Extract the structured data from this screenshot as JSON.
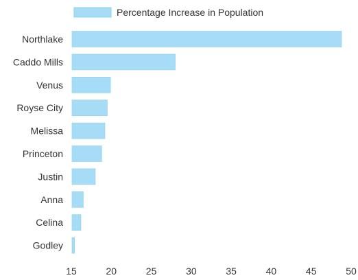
{
  "colors": {
    "bar_fill": "#a6dcf5",
    "bar_stroke": "#8ccfee",
    "legend_fill": "#a6dcf5",
    "text": "#333333"
  },
  "chart_data": {
    "type": "bar",
    "orientation": "horizontal",
    "title": "",
    "xlabel": "",
    "ylabel": "",
    "legend": {
      "label": "Percentage Increase in Population",
      "position": "top"
    },
    "grid": false,
    "xlim": [
      15,
      50
    ],
    "x_ticks": [
      15,
      20,
      25,
      30,
      35,
      40,
      45,
      50
    ],
    "categories": [
      "Northlake",
      "Caddo Mills",
      "Venus",
      "Royse City",
      "Melissa",
      "Princeton",
      "Justin",
      "Anna",
      "Celina",
      "Godley"
    ],
    "series": [
      {
        "name": "Percentage Increase in Population",
        "values": [
          48.8,
          28.0,
          19.9,
          19.5,
          19.2,
          18.8,
          18.0,
          16.5,
          16.2,
          15.4
        ]
      }
    ]
  }
}
